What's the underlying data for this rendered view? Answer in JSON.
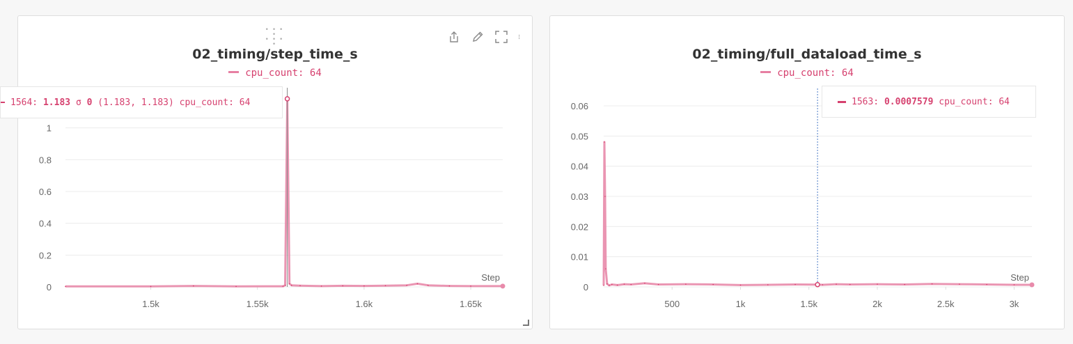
{
  "colors": {
    "series": "#e88aaa",
    "series_dark": "#d6416f",
    "grid": "#ececec",
    "hover_line": "#4a79c5"
  },
  "icons": [
    "drag-handle-icon",
    "share-icon",
    "edit-icon",
    "fullscreen-icon",
    "more-options-icon"
  ],
  "chart_data": [
    {
      "type": "line",
      "title": "02_timing/step_time_s",
      "legend": [
        "cpu_count: 64"
      ],
      "xlabel": "Step",
      "xlim": [
        1460,
        1665
      ],
      "ylim": [
        0,
        1.2
      ],
      "xticks": [
        {
          "value": 1500,
          "label": "1.5k"
        },
        {
          "value": 1550,
          "label": "1.55k"
        },
        {
          "value": 1600,
          "label": "1.6k"
        },
        {
          "value": 1650,
          "label": "1.65k"
        }
      ],
      "yticks": [
        {
          "value": 0,
          "label": "0"
        },
        {
          "value": 0.2,
          "label": "0.2"
        },
        {
          "value": 0.4,
          "label": "0.4"
        },
        {
          "value": 0.6,
          "label": "0.6"
        },
        {
          "value": 0.8,
          "label": "0.8"
        },
        {
          "value": 1,
          "label": "1"
        }
      ],
      "series": [
        {
          "name": "cpu_count: 64",
          "x": [
            1460,
            1500,
            1520,
            1540,
            1562,
            1563,
            1564,
            1565,
            1566,
            1570,
            1580,
            1590,
            1600,
            1610,
            1620,
            1625,
            1630,
            1640,
            1650,
            1665
          ],
          "y": [
            0.003,
            0.003,
            0.006,
            0.003,
            0.004,
            0.01,
            1.183,
            0.02,
            0.01,
            0.008,
            0.005,
            0.007,
            0.006,
            0.008,
            0.01,
            0.02,
            0.01,
            0.006,
            0.005,
            0.005
          ]
        }
      ],
      "tooltip": {
        "step": "1564:",
        "value": "1.183",
        "sigma": "σ",
        "sigma_value": "0",
        "range": "(1.183, 1.183)",
        "label": "cpu_count: 64"
      },
      "hover_step": 1564
    },
    {
      "type": "line",
      "title": "02_timing/full_dataload_time_s",
      "legend": [
        "cpu_count: 64"
      ],
      "xlabel": "Step",
      "xlim": [
        0,
        3130
      ],
      "ylim": [
        0,
        0.063
      ],
      "xticks": [
        {
          "value": 500,
          "label": "500"
        },
        {
          "value": 1000,
          "label": "1k"
        },
        {
          "value": 1500,
          "label": "1.5k"
        },
        {
          "value": 2000,
          "label": "2k"
        },
        {
          "value": 2500,
          "label": "2.5k"
        },
        {
          "value": 3000,
          "label": "3k"
        }
      ],
      "yticks": [
        {
          "value": 0,
          "label": "0"
        },
        {
          "value": 0.01,
          "label": "0.01"
        },
        {
          "value": 0.02,
          "label": "0.02"
        },
        {
          "value": 0.03,
          "label": "0.03"
        },
        {
          "value": 0.04,
          "label": "0.04"
        },
        {
          "value": 0.05,
          "label": "0.05"
        },
        {
          "value": 0.06,
          "label": "0.06"
        }
      ],
      "series": [
        {
          "name": "cpu_count: 64",
          "x": [
            0,
            5,
            10,
            15,
            25,
            40,
            60,
            100,
            150,
            200,
            300,
            400,
            600,
            800,
            1000,
            1200,
            1400,
            1563,
            1600,
            1700,
            1800,
            2000,
            2200,
            2400,
            2600,
            2800,
            3000,
            3130
          ],
          "y": [
            0.0005,
            0.048,
            0.03,
            0.006,
            0.001,
            0.0005,
            0.0008,
            0.0006,
            0.0009,
            0.0008,
            0.0012,
            0.0008,
            0.0009,
            0.0008,
            0.0006,
            0.0007,
            0.0008,
            0.0007579,
            0.0007,
            0.0009,
            0.0008,
            0.0009,
            0.0008,
            0.001,
            0.0009,
            0.0008,
            0.0007,
            0.0007
          ]
        }
      ],
      "tooltip": {
        "step": "1563:",
        "value": "0.0007579",
        "label": "cpu_count: 64"
      },
      "hover_step": 1563
    }
  ]
}
